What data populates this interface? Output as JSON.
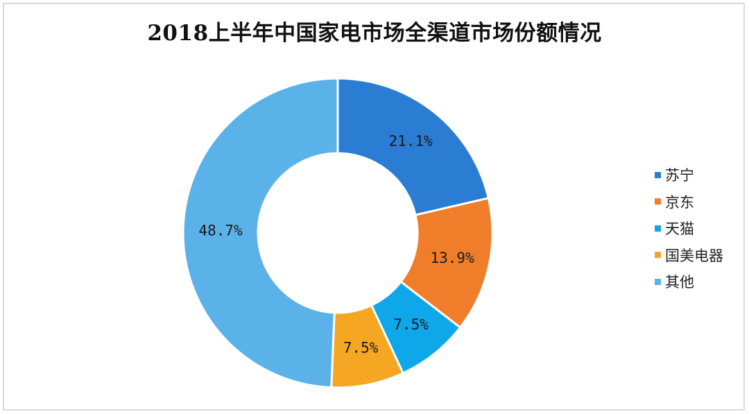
{
  "chart_data": {
    "type": "pie",
    "title": "2018上半年中国家电市场全渠道市场份额情况",
    "categories": [
      "苏宁",
      "京东",
      "天猫",
      "国美电器",
      "其他"
    ],
    "values": [
      21.1,
      13.9,
      7.5,
      7.5,
      48.7
    ],
    "value_labels": [
      "21.1%",
      "13.9%",
      "7.5%",
      "7.5%",
      "48.7%"
    ],
    "unit": "%",
    "colors": [
      "#2a7dd2",
      "#f07d2a",
      "#0ea8ea",
      "#f5a623",
      "#5bb2e8"
    ],
    "donut": true,
    "legend_position": "right"
  }
}
